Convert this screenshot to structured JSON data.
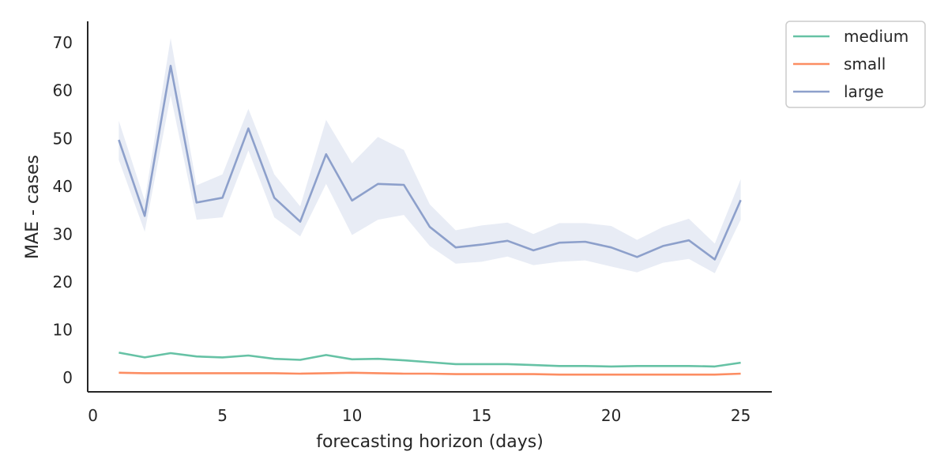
{
  "chart_data": {
    "type": "line",
    "xlabel": "forecasting horizon (days)",
    "ylabel": "MAE - cases",
    "xlim": [
      -0.2,
      26.2
    ],
    "ylim": [
      -3,
      74.5
    ],
    "xticks": [
      0,
      5,
      10,
      15,
      20,
      25
    ],
    "yticks": [
      0,
      10,
      20,
      30,
      40,
      50,
      60,
      70
    ],
    "grid": false,
    "legend": "outside-top-right",
    "x": [
      1,
      2,
      3,
      4,
      5,
      6,
      7,
      8,
      9,
      10,
      11,
      12,
      13,
      14,
      15,
      16,
      17,
      18,
      19,
      20,
      21,
      22,
      23,
      24,
      25
    ],
    "series": [
      {
        "name": "medium",
        "color": "#66c2a5",
        "values": [
          5.2,
          4.2,
          5.1,
          4.4,
          4.2,
          4.6,
          3.9,
          3.7,
          4.7,
          3.8,
          3.9,
          3.6,
          3.2,
          2.8,
          2.8,
          2.8,
          2.6,
          2.4,
          2.4,
          2.3,
          2.4,
          2.4,
          2.4,
          2.3,
          3.1
        ]
      },
      {
        "name": "small",
        "color": "#fc8d62",
        "values": [
          1.0,
          0.9,
          0.9,
          0.9,
          0.9,
          0.9,
          0.9,
          0.8,
          0.9,
          1.0,
          0.9,
          0.8,
          0.8,
          0.7,
          0.7,
          0.7,
          0.7,
          0.6,
          0.6,
          0.6,
          0.6,
          0.6,
          0.6,
          0.6,
          0.8
        ]
      },
      {
        "name": "large",
        "color": "#8da0cb",
        "values": [
          49.7,
          33.8,
          65.2,
          36.6,
          37.6,
          52.1,
          37.6,
          32.6,
          46.7,
          37.0,
          40.5,
          40.3,
          31.5,
          27.2,
          27.8,
          28.6,
          26.6,
          28.2,
          28.4,
          27.2,
          25.2,
          27.5,
          28.7,
          24.7,
          37.1
        ],
        "ci_low": [
          45.5,
          30.5,
          59.0,
          33.0,
          33.5,
          47.5,
          33.5,
          29.5,
          40.5,
          29.8,
          33.0,
          34.0,
          27.5,
          23.8,
          24.2,
          25.3,
          23.5,
          24.2,
          24.5,
          23.2,
          22.0,
          24.0,
          24.8,
          21.8,
          33.0
        ],
        "ci_high": [
          53.7,
          37.0,
          71.0,
          40.2,
          42.5,
          56.2,
          42.5,
          35.8,
          53.9,
          44.8,
          50.3,
          47.6,
          36.2,
          30.8,
          31.8,
          32.4,
          30.0,
          32.3,
          32.3,
          31.7,
          28.8,
          31.5,
          33.2,
          28.0,
          41.5
        ]
      }
    ]
  }
}
